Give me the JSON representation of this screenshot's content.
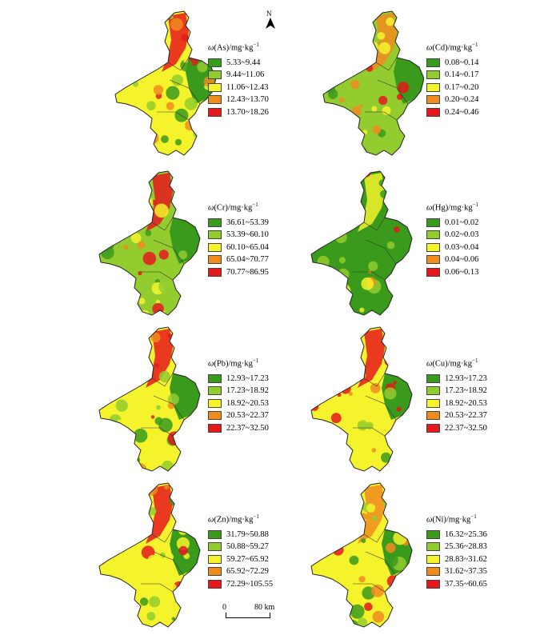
{
  "colors": [
    "#3a9a1c",
    "#93cc2e",
    "#f5f32c",
    "#f08c1e",
    "#e6181c"
  ],
  "panels": [
    {
      "element": "As",
      "title_prefix": "ω",
      "title_unit": "/mg·kg",
      "title_exp": "−1",
      "classes": [
        "5.33~9.44",
        "9.44~11.06",
        "11.06~12.43",
        "12.43~13.70",
        "13.70~18.26"
      ]
    },
    {
      "element": "Cd",
      "title_prefix": "ω",
      "title_unit": "/mg·kg",
      "title_exp": "−1",
      "classes": [
        "0.08~0.14",
        "0.14~0.17",
        "0.17~0.20",
        "0.20~0.24",
        "0.24~0.46"
      ]
    },
    {
      "element": "Cr",
      "title_prefix": "ω",
      "title_unit": "/mg·kg",
      "title_exp": "−1",
      "classes": [
        "36.61~53.39",
        "53.39~60.10",
        "60.10~65.04",
        "65.04~70.77",
        "70.77~86.95"
      ]
    },
    {
      "element": "Hg",
      "title_prefix": "ω",
      "title_unit": "/mg·kg",
      "title_exp": "−1",
      "classes": [
        "0.01~0.02",
        "0.02~0.03",
        "0.03~0.04",
        "0.04~0.06",
        "0.06~0.13"
      ]
    },
    {
      "element": "Pb",
      "title_prefix": "ω",
      "title_unit": "/mg·kg",
      "title_exp": "−1",
      "classes": [
        "12.93~17.23",
        "17.23~18.92",
        "18.92~20.53",
        "20.53~22.37",
        "22.37~32.50"
      ]
    },
    {
      "element": "Cu",
      "title_prefix": "ω",
      "title_unit": "/mg·kg",
      "title_exp": "−1",
      "classes": [
        "12.93~17.23",
        "17.23~18.92",
        "18.92~20.53",
        "20.53~22.37",
        "22.37~32.50"
      ]
    },
    {
      "element": "Zn",
      "title_prefix": "ω",
      "title_unit": "/mg·kg",
      "title_exp": "−1",
      "classes": [
        "31.79~50.88",
        "50.88~59.27",
        "59.27~65.92",
        "65.92~72.29",
        "72.29~105.55"
      ]
    },
    {
      "element": "Ni",
      "title_prefix": "ω",
      "title_unit": "/mg·kg",
      "title_exp": "−1",
      "classes": [
        "16.32~25.36",
        "25.36~28.83",
        "28.83~31.62",
        "31.62~37.35",
        "37.35~60.65"
      ]
    }
  ],
  "north_label": "N",
  "scale": {
    "start": "0",
    "end": "80 km"
  }
}
